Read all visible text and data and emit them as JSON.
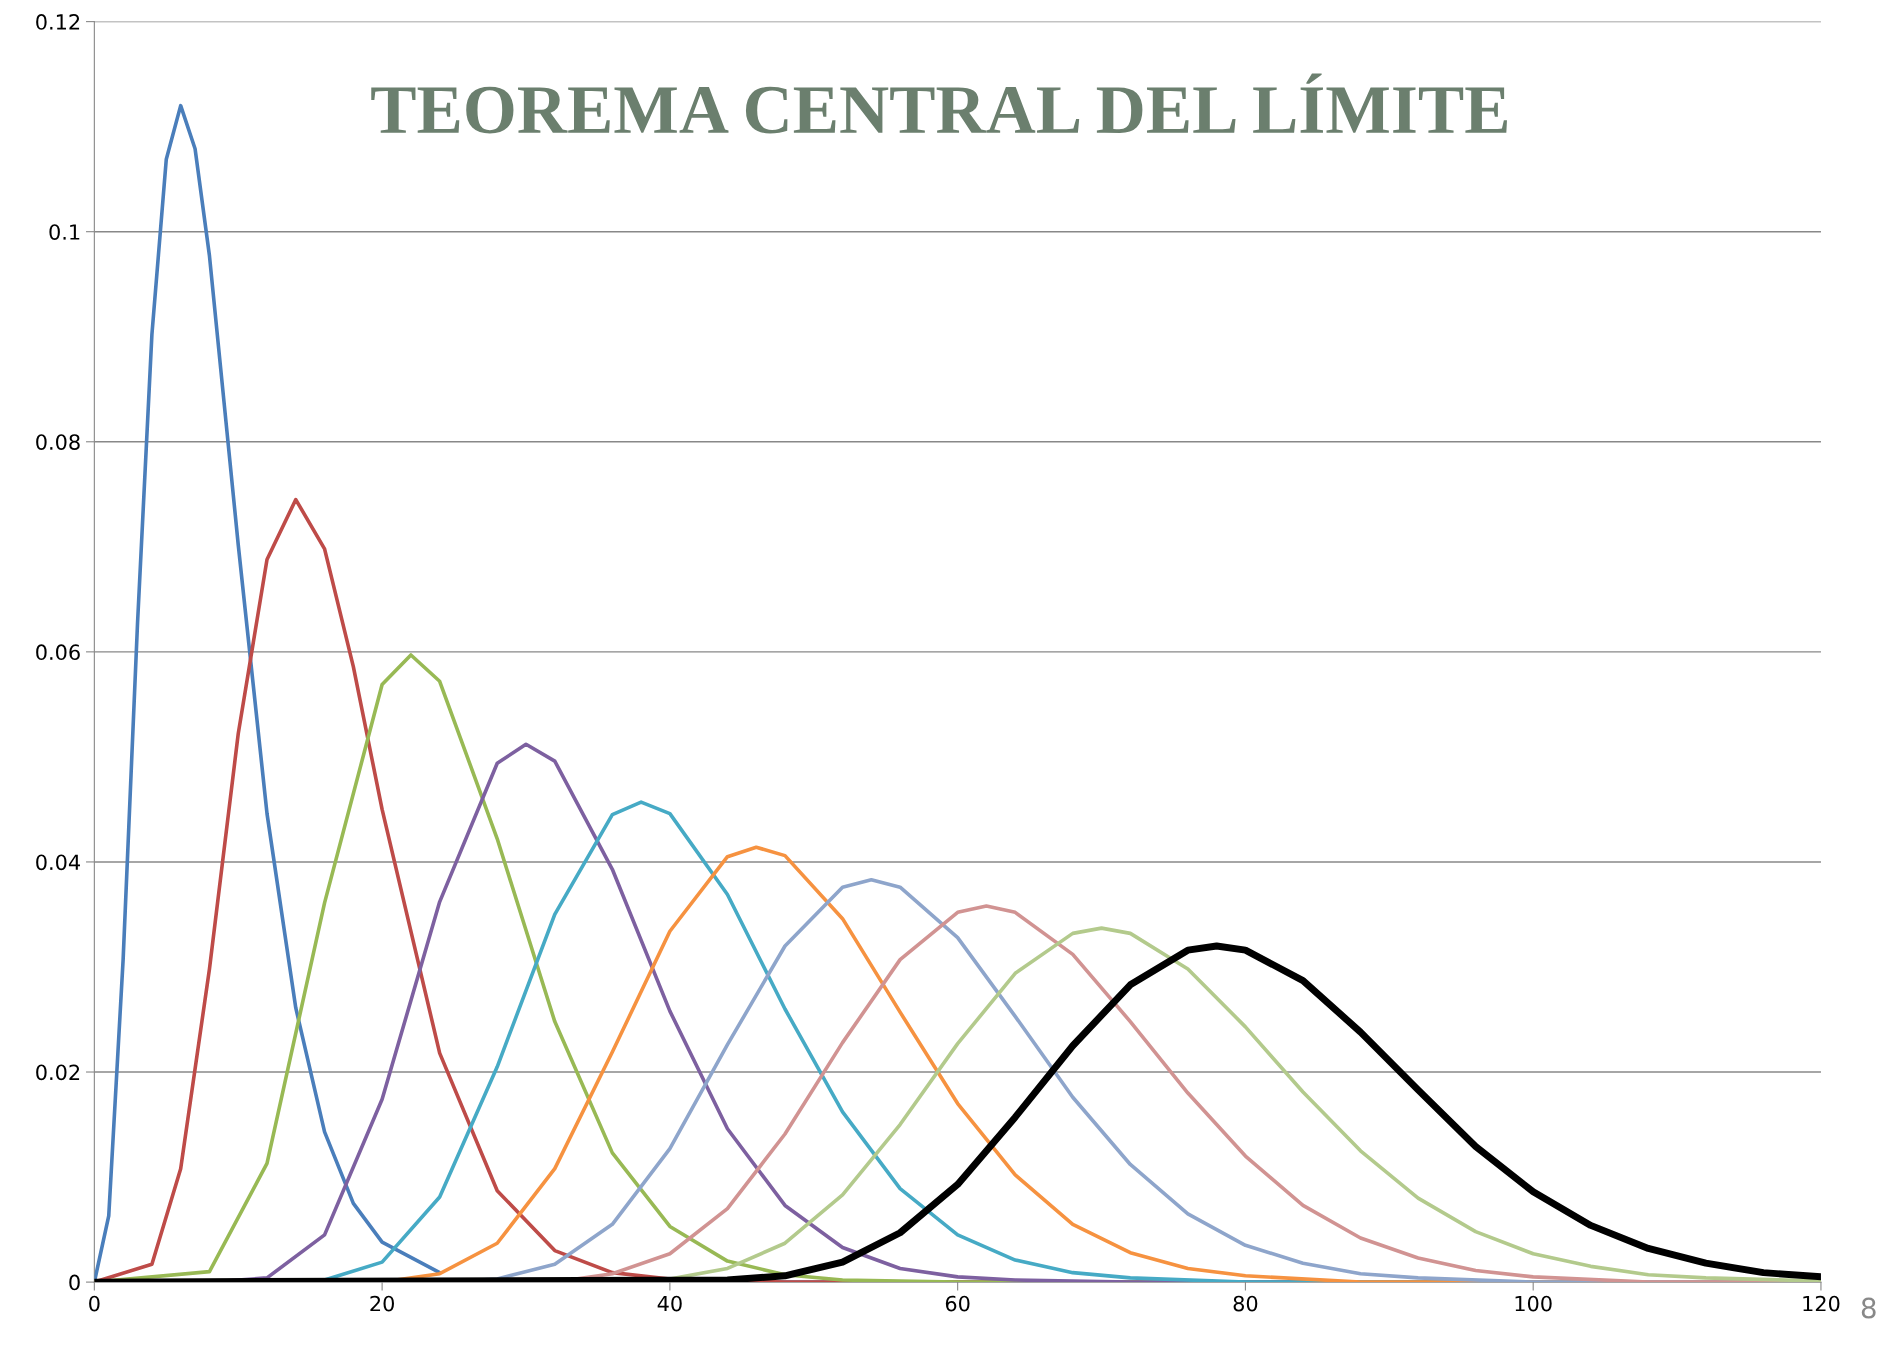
{
  "chart_data": {
    "type": "line",
    "title": "TEOREMA CENTRAL DEL LÍMITE",
    "annotations": [
      "8"
    ],
    "xlim": [
      0,
      120
    ],
    "ylim": [
      0,
      0.12
    ],
    "xticks": [
      0,
      20,
      40,
      60,
      80,
      100,
      120
    ],
    "yticks": [
      0,
      0.02,
      0.04,
      0.06,
      0.08,
      0.1,
      0.12
    ],
    "grid": "y",
    "legend": false,
    "marker": "none",
    "line_style": "solid",
    "series": [
      {
        "color": "#4a7ebb",
        "x": [
          0,
          1,
          2,
          3,
          4,
          5,
          6,
          7,
          8,
          10,
          12,
          14,
          16,
          18,
          20,
          24,
          30,
          40,
          120
        ],
        "values": [
          0,
          0.0063,
          0.0307,
          0.0627,
          0.0902,
          0.1069,
          0.112,
          0.1079,
          0.0977,
          0.0702,
          0.0446,
          0.0261,
          0.0143,
          0.0075,
          0.0038,
          0.0009,
          null,
          0,
          0
        ]
      },
      {
        "color": "#be4b48",
        "x": [
          0,
          4,
          6,
          8,
          10,
          12,
          14,
          16,
          18,
          20,
          24,
          28,
          32,
          36,
          40,
          48,
          120
        ],
        "values": [
          0,
          0.0017,
          0.0108,
          0.0298,
          0.0522,
          0.0688,
          0.0745,
          0.0698,
          0.0586,
          0.045,
          0.0218,
          0.0087,
          0.003,
          0.0009,
          0.0003,
          0,
          0
        ]
      },
      {
        "color": "#98b954",
        "x": [
          0,
          8,
          12,
          16,
          20,
          22,
          24,
          28,
          32,
          36,
          40,
          44,
          48,
          52,
          60,
          120
        ],
        "values": [
          0,
          0.001,
          0.0113,
          0.0361,
          0.0569,
          0.0597,
          0.0572,
          0.0422,
          0.0248,
          0.0123,
          0.0053,
          0.002,
          0.0007,
          0.0002,
          0,
          0
        ]
      },
      {
        "color": "#7d60a0",
        "x": [
          0,
          8,
          12,
          16,
          20,
          24,
          28,
          30,
          32,
          36,
          40,
          44,
          48,
          52,
          56,
          60,
          64,
          72,
          120
        ],
        "values": [
          0,
          0,
          0.0004,
          0.0045,
          0.0174,
          0.0362,
          0.0494,
          0.0512,
          0.0496,
          0.0393,
          0.0258,
          0.0146,
          0.0073,
          0.0033,
          0.0013,
          0.0005,
          0.0002,
          0,
          0
        ]
      },
      {
        "color": "#46aac5",
        "x": [
          0,
          12,
          16,
          20,
          24,
          28,
          32,
          36,
          38,
          40,
          44,
          48,
          52,
          56,
          60,
          64,
          68,
          72,
          80,
          120
        ],
        "values": [
          0,
          0,
          0.0002,
          0.0019,
          0.0081,
          0.0205,
          0.035,
          0.0445,
          0.0457,
          0.0446,
          0.0369,
          0.026,
          0.0162,
          0.0089,
          0.0045,
          0.0021,
          0.0009,
          0.0004,
          0,
          0
        ]
      },
      {
        "color": "#f69240",
        "x": [
          0,
          20,
          24,
          28,
          32,
          36,
          40,
          44,
          46,
          48,
          52,
          56,
          60,
          64,
          68,
          72,
          76,
          80,
          88,
          120
        ],
        "values": [
          0,
          0,
          0.0008,
          0.0037,
          0.0108,
          0.0219,
          0.0334,
          0.0405,
          0.0414,
          0.0406,
          0.0346,
          0.0257,
          0.017,
          0.0102,
          0.0055,
          0.0028,
          0.0013,
          0.0006,
          0,
          0
        ]
      },
      {
        "color": "#8ea5cb",
        "x": [
          0,
          24,
          28,
          32,
          36,
          40,
          44,
          48,
          52,
          54,
          56,
          60,
          64,
          68,
          72,
          76,
          80,
          84,
          88,
          92,
          100,
          120
        ],
        "values": [
          0,
          0,
          0.0003,
          0.0017,
          0.0055,
          0.0127,
          0.0226,
          0.032,
          0.0376,
          0.0383,
          0.0376,
          0.0328,
          0.0253,
          0.0176,
          0.0112,
          0.0065,
          0.0035,
          0.0018,
          0.0008,
          0.0004,
          0,
          0
        ]
      },
      {
        "color": "#d19392",
        "x": [
          0,
          32,
          36,
          40,
          44,
          48,
          52,
          56,
          60,
          62,
          64,
          68,
          72,
          76,
          80,
          84,
          88,
          92,
          96,
          100,
          108,
          120
        ],
        "values": [
          0,
          0,
          0.0008,
          0.0027,
          0.007,
          0.0141,
          0.0228,
          0.0307,
          0.0352,
          0.0358,
          0.0352,
          0.0312,
          0.0248,
          0.018,
          0.012,
          0.0073,
          0.0042,
          0.0023,
          0.0011,
          0.0005,
          0,
          0
        ]
      },
      {
        "color": "#b3ca8c",
        "x": [
          0,
          36,
          40,
          44,
          48,
          52,
          56,
          60,
          64,
          68,
          70,
          72,
          76,
          80,
          84,
          88,
          92,
          96,
          100,
          104,
          108,
          112,
          120
        ],
        "values": [
          0,
          0,
          0.0003,
          0.0013,
          0.0037,
          0.0083,
          0.015,
          0.0227,
          0.0294,
          0.0332,
          0.0337,
          0.0332,
          0.0298,
          0.0243,
          0.0181,
          0.0125,
          0.008,
          0.0048,
          0.0027,
          0.0015,
          0.0007,
          0.0004,
          0.0001
        ]
      },
      {
        "color": "#000000",
        "x": [
          0,
          44,
          48,
          52,
          56,
          60,
          64,
          68,
          72,
          76,
          78,
          80,
          84,
          88,
          92,
          96,
          100,
          104,
          108,
          112,
          116,
          120
        ],
        "values": [
          0,
          0.0002,
          0.0006,
          0.0019,
          0.0047,
          0.0093,
          0.0157,
          0.0225,
          0.0283,
          0.0316,
          0.032,
          0.0316,
          0.0287,
          0.0238,
          0.0183,
          0.0129,
          0.0086,
          0.0054,
          0.0032,
          0.0018,
          0.0009,
          0.0005
        ]
      }
    ]
  }
}
